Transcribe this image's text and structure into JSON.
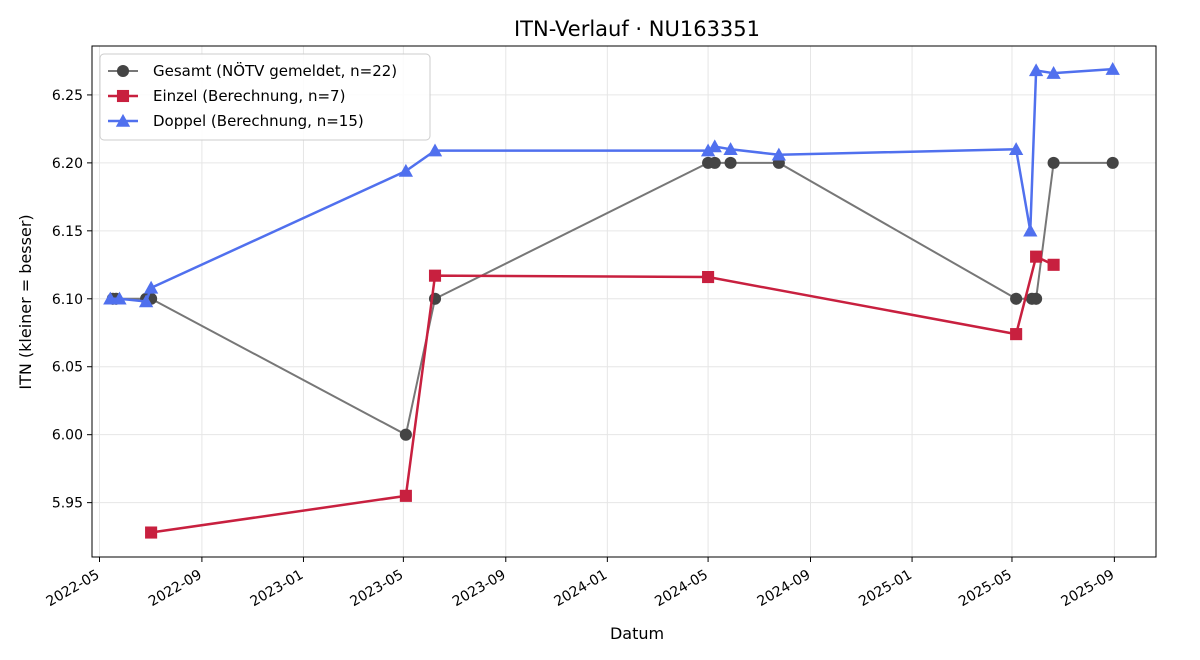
{
  "chart_data": {
    "type": "line",
    "title": "ITN-Verlauf · NU163351",
    "xlabel": "Datum",
    "ylabel": "ITN  (kleiner = besser)",
    "x_range": [
      "2022-04-22",
      "2025-10-21"
    ],
    "ylim": [
      5.91,
      6.286
    ],
    "grid": true,
    "legend_position": "top-left",
    "x_ticks": [
      "2022-05",
      "2022-09",
      "2023-01",
      "2023-05",
      "2023-09",
      "2024-01",
      "2024-05",
      "2024-09",
      "2025-01",
      "2025-05",
      "2025-09"
    ],
    "y_ticks": [
      "5.95",
      "6.00",
      "6.05",
      "6.10",
      "6.15",
      "6.20",
      "6.25"
    ],
    "series": [
      {
        "name": "Gesamt (NÖTV gemeldet, n=22)",
        "color": "#777777",
        "marker_color": "#444444",
        "marker": "circle",
        "points": [
          [
            "2022-05-17",
            6.1
          ],
          [
            "2022-05-21",
            6.1
          ],
          [
            "2022-06-26",
            6.1
          ],
          [
            "2022-07-02",
            6.1
          ],
          [
            "2023-05-04",
            6.0
          ],
          [
            "2023-06-08",
            6.1
          ],
          [
            "2024-05-01",
            6.2
          ],
          [
            "2024-05-09",
            6.2
          ],
          [
            "2024-05-28",
            6.2
          ],
          [
            "2024-07-25",
            6.2
          ],
          [
            "2025-05-06",
            6.1
          ],
          [
            "2025-05-25",
            6.1
          ],
          [
            "2025-05-30",
            6.1
          ],
          [
            "2025-06-20",
            6.2
          ],
          [
            "2025-08-30",
            6.2
          ]
        ]
      },
      {
        "name": "Einzel (Berechnung, n=7)",
        "color": "#c8203f",
        "marker_color": "#c8203f",
        "marker": "square",
        "points": [
          [
            "2022-07-02",
            5.928
          ],
          [
            "2023-05-04",
            5.955
          ],
          [
            "2023-06-08",
            6.117
          ],
          [
            "2024-05-01",
            6.116
          ],
          [
            "2025-05-06",
            6.074
          ],
          [
            "2025-05-30",
            6.131
          ],
          [
            "2025-06-20",
            6.125
          ]
        ]
      },
      {
        "name": "Doppel (Berechnung, n=15)",
        "color": "#5070ee",
        "marker_color": "#5070ee",
        "marker": "triangle",
        "points": [
          [
            "2022-05-14",
            6.1
          ],
          [
            "2022-05-25",
            6.1
          ],
          [
            "2022-06-26",
            6.098
          ],
          [
            "2022-07-02",
            6.108
          ],
          [
            "2023-05-04",
            6.194
          ],
          [
            "2023-06-08",
            6.209
          ],
          [
            "2024-05-01",
            6.209
          ],
          [
            "2024-05-09",
            6.212
          ],
          [
            "2024-05-28",
            6.21
          ],
          [
            "2024-07-25",
            6.206
          ],
          [
            "2025-05-06",
            6.21
          ],
          [
            "2025-05-23",
            6.15
          ],
          [
            "2025-05-30",
            6.268
          ],
          [
            "2025-06-20",
            6.266
          ],
          [
            "2025-08-30",
            6.269
          ]
        ]
      }
    ]
  }
}
